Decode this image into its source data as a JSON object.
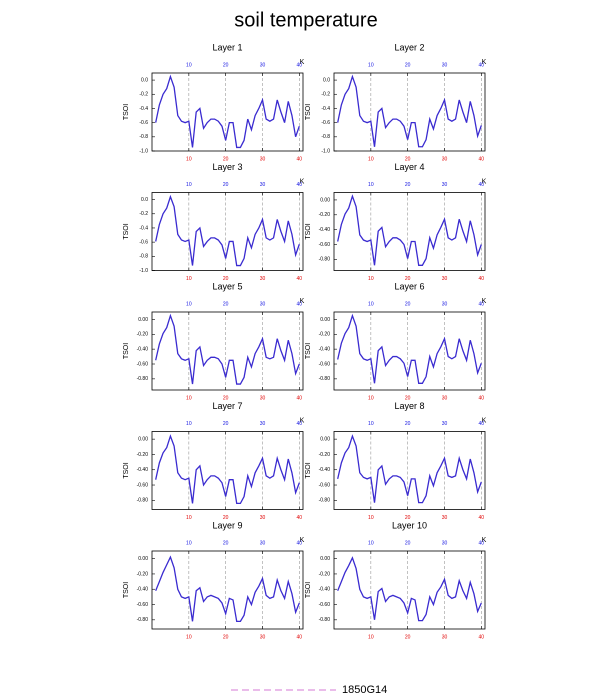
{
  "title": "soil temperature",
  "legend": {
    "label": "1850G14",
    "color": "#e3a6e3"
  },
  "chart_data": [
    {
      "type": "line",
      "title": "Layer 1",
      "ylabel": "TSOI",
      "x2label": "K",
      "color": "#3a2bd0",
      "x": [
        1,
        2,
        3,
        4,
        5,
        6,
        7,
        8,
        9,
        10,
        11,
        12,
        13,
        14,
        15,
        16,
        17,
        18,
        19,
        20,
        21,
        22,
        23,
        24,
        25,
        26,
        27,
        28,
        29,
        30,
        31,
        32,
        33,
        34,
        35,
        36,
        37,
        38,
        39,
        40
      ],
      "values": [
        -0.6,
        -0.35,
        -0.2,
        -0.12,
        0.05,
        -0.1,
        -0.5,
        -0.58,
        -0.6,
        -0.58,
        -0.95,
        -0.45,
        -0.4,
        -0.68,
        -0.6,
        -0.55,
        -0.55,
        -0.58,
        -0.65,
        -0.85,
        -0.6,
        -0.6,
        -0.95,
        -0.95,
        -0.85,
        -0.55,
        -0.7,
        -0.5,
        -0.4,
        -0.28,
        -0.55,
        -0.58,
        -0.55,
        -0.28,
        -0.45,
        -0.6,
        -0.3,
        -0.5,
        -0.8,
        -0.65
      ],
      "xlim": [
        0,
        41
      ],
      "xticks": [
        10,
        20,
        30,
        40
      ],
      "x2ticks": [
        10,
        20,
        30,
        40
      ],
      "xtick_color": "#e00000",
      "x2tick_color": "#1010e0",
      "grid": "x",
      "ylim": [
        -1,
        0.1
      ],
      "yticks": [
        {
          "value": 0,
          "label": "0.0"
        },
        -0.2,
        -0.4,
        -0.6,
        -0.8,
        {
          "value": -1,
          "label": "-1.0"
        }
      ]
    },
    {
      "type": "line",
      "title": "Layer 2",
      "ylabel": "TSOI",
      "x2label": "K",
      "color": "#3a2bd0",
      "x": [
        1,
        2,
        3,
        4,
        5,
        6,
        7,
        8,
        9,
        10,
        11,
        12,
        13,
        14,
        15,
        16,
        17,
        18,
        19,
        20,
        21,
        22,
        23,
        24,
        25,
        26,
        27,
        28,
        29,
        30,
        31,
        32,
        33,
        34,
        35,
        36,
        37,
        38,
        39,
        40
      ],
      "values": [
        -0.6,
        -0.35,
        -0.2,
        -0.12,
        0.05,
        -0.1,
        -0.5,
        -0.58,
        -0.6,
        -0.58,
        -0.94,
        -0.45,
        -0.4,
        -0.67,
        -0.6,
        -0.55,
        -0.55,
        -0.58,
        -0.65,
        -0.84,
        -0.6,
        -0.6,
        -0.94,
        -0.94,
        -0.84,
        -0.55,
        -0.69,
        -0.5,
        -0.4,
        -0.28,
        -0.55,
        -0.58,
        -0.55,
        -0.28,
        -0.45,
        -0.6,
        -0.3,
        -0.5,
        -0.79,
        -0.64
      ],
      "xlim": [
        0,
        41
      ],
      "xticks": [
        10,
        20,
        30,
        40
      ],
      "x2ticks": [
        10,
        20,
        30,
        40
      ],
      "xtick_color": "#e00000",
      "x2tick_color": "#1010e0",
      "grid": "x",
      "ylim": [
        -1,
        0.1
      ],
      "yticks": [
        {
          "value": 0,
          "label": "0.0"
        },
        -0.2,
        -0.4,
        -0.6,
        -0.8,
        {
          "value": -1,
          "label": "-1.0"
        }
      ]
    },
    {
      "type": "line",
      "title": "Layer 3",
      "ylabel": "TSOI",
      "x2label": "K",
      "color": "#3a2bd0",
      "x": [
        1,
        2,
        3,
        4,
        5,
        6,
        7,
        8,
        9,
        10,
        11,
        12,
        13,
        14,
        15,
        16,
        17,
        18,
        19,
        20,
        21,
        22,
        23,
        24,
        25,
        26,
        27,
        28,
        29,
        30,
        31,
        32,
        33,
        34,
        35,
        36,
        37,
        38,
        39,
        40
      ],
      "values": [
        -0.59,
        -0.35,
        -0.2,
        -0.12,
        0.04,
        -0.1,
        -0.49,
        -0.57,
        -0.59,
        -0.57,
        -0.93,
        -0.45,
        -0.4,
        -0.66,
        -0.59,
        -0.54,
        -0.54,
        -0.57,
        -0.64,
        -0.83,
        -0.59,
        -0.59,
        -0.93,
        -0.93,
        -0.83,
        -0.54,
        -0.68,
        -0.49,
        -0.4,
        -0.28,
        -0.54,
        -0.57,
        -0.54,
        -0.28,
        -0.45,
        -0.59,
        -0.3,
        -0.49,
        -0.78,
        -0.63
      ],
      "xlim": [
        0,
        41
      ],
      "xticks": [
        10,
        20,
        30,
        40
      ],
      "x2ticks": [
        10,
        20,
        30,
        40
      ],
      "xtick_color": "#e00000",
      "x2tick_color": "#1010e0",
      "grid": "x",
      "ylim": [
        -1,
        0.1
      ],
      "yticks": [
        {
          "value": 0,
          "label": "0.0"
        },
        -0.2,
        -0.4,
        -0.6,
        -0.8,
        {
          "value": -1,
          "label": "-1.0"
        }
      ]
    },
    {
      "type": "line",
      "title": "Layer 4",
      "ylabel": "TSOI",
      "x2label": "K",
      "color": "#3a2bd0",
      "x": [
        1,
        2,
        3,
        4,
        5,
        6,
        7,
        8,
        9,
        10,
        11,
        12,
        13,
        14,
        15,
        16,
        17,
        18,
        19,
        20,
        21,
        22,
        23,
        24,
        25,
        26,
        27,
        28,
        29,
        30,
        31,
        32,
        33,
        34,
        35,
        36,
        37,
        38,
        39,
        40
      ],
      "values": [
        -0.56,
        -0.33,
        -0.19,
        -0.11,
        0.05,
        -0.09,
        -0.47,
        -0.54,
        -0.56,
        -0.54,
        -0.88,
        -0.42,
        -0.37,
        -0.63,
        -0.56,
        -0.51,
        -0.51,
        -0.54,
        -0.6,
        -0.79,
        -0.56,
        -0.56,
        -0.88,
        -0.88,
        -0.79,
        -0.51,
        -0.65,
        -0.47,
        -0.37,
        -0.26,
        -0.51,
        -0.54,
        -0.51,
        -0.26,
        -0.42,
        -0.56,
        -0.28,
        -0.47,
        -0.74,
        -0.6
      ],
      "xlim": [
        0,
        41
      ],
      "xticks": [
        10,
        20,
        30,
        40
      ],
      "x2ticks": [
        10,
        20,
        30,
        40
      ],
      "xtick_color": "#e00000",
      "x2tick_color": "#1010e0",
      "grid": "x",
      "ylim": [
        -0.95,
        0.1
      ],
      "yticks": [
        {
          "value": 0,
          "label": "0.00"
        },
        {
          "value": -0.2,
          "label": "-0.20"
        },
        {
          "value": -0.4,
          "label": "-0.40"
        },
        {
          "value": -0.6,
          "label": "-0.60"
        },
        {
          "value": -0.8,
          "label": "-0.80"
        }
      ]
    },
    {
      "type": "line",
      "title": "Layer 5",
      "ylabel": "TSOI",
      "x2label": "K",
      "color": "#3a2bd0",
      "x": [
        1,
        2,
        3,
        4,
        5,
        6,
        7,
        8,
        9,
        10,
        11,
        12,
        13,
        14,
        15,
        16,
        17,
        18,
        19,
        20,
        21,
        22,
        23,
        24,
        25,
        26,
        27,
        28,
        29,
        30,
        31,
        32,
        33,
        34,
        35,
        36,
        37,
        38,
        39,
        40
      ],
      "values": [
        -0.55,
        -0.33,
        -0.19,
        -0.11,
        0.05,
        -0.09,
        -0.46,
        -0.53,
        -0.55,
        -0.53,
        -0.87,
        -0.42,
        -0.37,
        -0.62,
        -0.55,
        -0.51,
        -0.51,
        -0.53,
        -0.6,
        -0.78,
        -0.55,
        -0.55,
        -0.87,
        -0.87,
        -0.78,
        -0.51,
        -0.64,
        -0.46,
        -0.37,
        -0.26,
        -0.51,
        -0.53,
        -0.51,
        -0.26,
        -0.42,
        -0.55,
        -0.28,
        -0.46,
        -0.73,
        -0.6
      ],
      "xlim": [
        0,
        41
      ],
      "xticks": [
        10,
        20,
        30,
        40
      ],
      "x2ticks": [
        10,
        20,
        30,
        40
      ],
      "xtick_color": "#e00000",
      "x2tick_color": "#1010e0",
      "grid": "x",
      "ylim": [
        -0.95,
        0.1
      ],
      "yticks": [
        {
          "value": 0,
          "label": "0.00"
        },
        {
          "value": -0.2,
          "label": "-0.20"
        },
        {
          "value": -0.4,
          "label": "-0.40"
        },
        {
          "value": -0.6,
          "label": "-0.60"
        },
        {
          "value": -0.8,
          "label": "-0.80"
        }
      ]
    },
    {
      "type": "line",
      "title": "Layer 6",
      "ylabel": "TSOI",
      "x2label": "K",
      "color": "#3a2bd0",
      "x": [
        1,
        2,
        3,
        4,
        5,
        6,
        7,
        8,
        9,
        10,
        11,
        12,
        13,
        14,
        15,
        16,
        17,
        18,
        19,
        20,
        21,
        22,
        23,
        24,
        25,
        26,
        27,
        28,
        29,
        30,
        31,
        32,
        33,
        34,
        35,
        36,
        37,
        38,
        39,
        40
      ],
      "values": [
        -0.54,
        -0.32,
        -0.19,
        -0.11,
        0.05,
        -0.09,
        -0.46,
        -0.53,
        -0.55,
        -0.53,
        -0.86,
        -0.42,
        -0.37,
        -0.62,
        -0.55,
        -0.5,
        -0.5,
        -0.53,
        -0.59,
        -0.77,
        -0.55,
        -0.55,
        -0.86,
        -0.86,
        -0.77,
        -0.5,
        -0.64,
        -0.46,
        -0.37,
        -0.26,
        -0.5,
        -0.53,
        -0.5,
        -0.26,
        -0.42,
        -0.55,
        -0.28,
        -0.46,
        -0.72,
        -0.59
      ],
      "xlim": [
        0,
        41
      ],
      "xticks": [
        10,
        20,
        30,
        40
      ],
      "x2ticks": [
        10,
        20,
        30,
        40
      ],
      "xtick_color": "#e00000",
      "x2tick_color": "#1010e0",
      "grid": "x",
      "ylim": [
        -0.95,
        0.1
      ],
      "yticks": [
        {
          "value": 0,
          "label": "0.00"
        },
        {
          "value": -0.2,
          "label": "-0.20"
        },
        {
          "value": -0.4,
          "label": "-0.40"
        },
        {
          "value": -0.6,
          "label": "-0.60"
        },
        {
          "value": -0.8,
          "label": "-0.80"
        }
      ]
    },
    {
      "type": "line",
      "title": "Layer 7",
      "ylabel": "TSOI",
      "x2label": "K",
      "color": "#3a2bd0",
      "x": [
        1,
        2,
        3,
        4,
        5,
        6,
        7,
        8,
        9,
        10,
        11,
        12,
        13,
        14,
        15,
        16,
        17,
        18,
        19,
        20,
        21,
        22,
        23,
        24,
        25,
        26,
        27,
        28,
        29,
        30,
        31,
        32,
        33,
        34,
        35,
        36,
        37,
        38,
        39,
        40
      ],
      "values": [
        -0.53,
        -0.31,
        -0.18,
        -0.11,
        0.04,
        -0.09,
        -0.44,
        -0.51,
        -0.53,
        -0.51,
        -0.84,
        -0.4,
        -0.35,
        -0.6,
        -0.53,
        -0.48,
        -0.48,
        -0.51,
        -0.57,
        -0.75,
        -0.53,
        -0.53,
        -0.84,
        -0.84,
        -0.75,
        -0.48,
        -0.62,
        -0.44,
        -0.35,
        -0.25,
        -0.48,
        -0.51,
        -0.48,
        -0.25,
        -0.4,
        -0.53,
        -0.26,
        -0.44,
        -0.7,
        -0.57
      ],
      "xlim": [
        0,
        41
      ],
      "xticks": [
        10,
        20,
        30,
        40
      ],
      "x2ticks": [
        10,
        20,
        30,
        40
      ],
      "xtick_color": "#e00000",
      "x2tick_color": "#1010e0",
      "grid": "x",
      "ylim": [
        -0.92,
        0.1
      ],
      "yticks": [
        {
          "value": 0,
          "label": "0.00"
        },
        {
          "value": -0.2,
          "label": "-0.20"
        },
        {
          "value": -0.4,
          "label": "-0.40"
        },
        {
          "value": -0.6,
          "label": "-0.60"
        },
        {
          "value": -0.8,
          "label": "-0.80"
        }
      ]
    },
    {
      "type": "line",
      "title": "Layer 8",
      "ylabel": "TSOI",
      "x2label": "K",
      "color": "#3a2bd0",
      "x": [
        1,
        2,
        3,
        4,
        5,
        6,
        7,
        8,
        9,
        10,
        11,
        12,
        13,
        14,
        15,
        16,
        17,
        18,
        19,
        20,
        21,
        22,
        23,
        24,
        25,
        26,
        27,
        28,
        29,
        30,
        31,
        32,
        33,
        34,
        35,
        36,
        37,
        38,
        39,
        40
      ],
      "values": [
        -0.52,
        -0.31,
        -0.18,
        -0.11,
        0.04,
        -0.09,
        -0.44,
        -0.5,
        -0.52,
        -0.5,
        -0.83,
        -0.4,
        -0.35,
        -0.59,
        -0.52,
        -0.48,
        -0.48,
        -0.5,
        -0.56,
        -0.74,
        -0.52,
        -0.52,
        -0.83,
        -0.83,
        -0.74,
        -0.48,
        -0.61,
        -0.44,
        -0.35,
        -0.25,
        -0.48,
        -0.5,
        -0.48,
        -0.25,
        -0.4,
        -0.52,
        -0.26,
        -0.44,
        -0.69,
        -0.56
      ],
      "xlim": [
        0,
        41
      ],
      "xticks": [
        10,
        20,
        30,
        40
      ],
      "x2ticks": [
        10,
        20,
        30,
        40
      ],
      "xtick_color": "#e00000",
      "x2tick_color": "#1010e0",
      "grid": "x",
      "ylim": [
        -0.92,
        0.1
      ],
      "yticks": [
        {
          "value": 0,
          "label": "0.00"
        },
        {
          "value": -0.2,
          "label": "-0.20"
        },
        {
          "value": -0.4,
          "label": "-0.40"
        },
        {
          "value": -0.6,
          "label": "-0.60"
        },
        {
          "value": -0.8,
          "label": "-0.80"
        }
      ]
    },
    {
      "type": "line",
      "title": "Layer 9",
      "ylabel": "TSOI",
      "x2label": "K",
      "color": "#3a2bd0",
      "x": [
        1,
        2,
        3,
        4,
        5,
        6,
        7,
        8,
        9,
        10,
        11,
        12,
        13,
        14,
        15,
        16,
        17,
        18,
        19,
        20,
        21,
        22,
        23,
        24,
        25,
        26,
        27,
        28,
        29,
        30,
        31,
        32,
        33,
        34,
        35,
        36,
        37,
        38,
        39,
        40
      ],
      "values": [
        -0.42,
        -0.3,
        -0.18,
        -0.08,
        0.02,
        -0.12,
        -0.4,
        -0.5,
        -0.52,
        -0.5,
        -0.82,
        -0.42,
        -0.38,
        -0.56,
        -0.5,
        -0.48,
        -0.5,
        -0.52,
        -0.58,
        -0.72,
        -0.52,
        -0.54,
        -0.82,
        -0.82,
        -0.74,
        -0.5,
        -0.6,
        -0.44,
        -0.36,
        -0.26,
        -0.48,
        -0.52,
        -0.5,
        -0.28,
        -0.42,
        -0.52,
        -0.3,
        -0.46,
        -0.7,
        -0.58
      ],
      "xlim": [
        0,
        41
      ],
      "xticks": [
        10,
        20,
        30,
        40
      ],
      "x2ticks": [
        10,
        20,
        30,
        40
      ],
      "xtick_color": "#e00000",
      "x2tick_color": "#1010e0",
      "grid": "x",
      "ylim": [
        -0.92,
        0.1
      ],
      "yticks": [
        {
          "value": 0,
          "label": "0.00"
        },
        {
          "value": -0.2,
          "label": "-0.20"
        },
        {
          "value": -0.4,
          "label": "-0.40"
        },
        {
          "value": -0.6,
          "label": "-0.60"
        },
        {
          "value": -0.8,
          "label": "-0.80"
        }
      ]
    },
    {
      "type": "line",
      "title": "Layer 10",
      "ylabel": "TSOI",
      "x2label": "K",
      "color": "#3a2bd0",
      "x": [
        1,
        2,
        3,
        4,
        5,
        6,
        7,
        8,
        9,
        10,
        11,
        12,
        13,
        14,
        15,
        16,
        17,
        18,
        19,
        20,
        21,
        22,
        23,
        24,
        25,
        26,
        27,
        28,
        29,
        30,
        31,
        32,
        33,
        34,
        35,
        36,
        37,
        38,
        39,
        40
      ],
      "values": [
        -0.42,
        -0.3,
        -0.18,
        -0.09,
        0.01,
        -0.13,
        -0.4,
        -0.5,
        -0.52,
        -0.5,
        -0.8,
        -0.43,
        -0.39,
        -0.56,
        -0.5,
        -0.48,
        -0.5,
        -0.52,
        -0.58,
        -0.71,
        -0.52,
        -0.54,
        -0.81,
        -0.81,
        -0.73,
        -0.5,
        -0.6,
        -0.44,
        -0.37,
        -0.27,
        -0.48,
        -0.52,
        -0.5,
        -0.29,
        -0.42,
        -0.52,
        -0.31,
        -0.46,
        -0.69,
        -0.58
      ],
      "xlim": [
        0,
        41
      ],
      "xticks": [
        10,
        20,
        30,
        40
      ],
      "x2ticks": [
        10,
        20,
        30,
        40
      ],
      "xtick_color": "#e00000",
      "x2tick_color": "#1010e0",
      "grid": "x",
      "ylim": [
        -0.92,
        0.1
      ],
      "yticks": [
        {
          "value": 0,
          "label": "0.00"
        },
        {
          "value": -0.2,
          "label": "-0.20"
        },
        {
          "value": -0.4,
          "label": "-0.40"
        },
        {
          "value": -0.6,
          "label": "-0.60"
        },
        {
          "value": -0.8,
          "label": "-0.80"
        }
      ]
    }
  ]
}
